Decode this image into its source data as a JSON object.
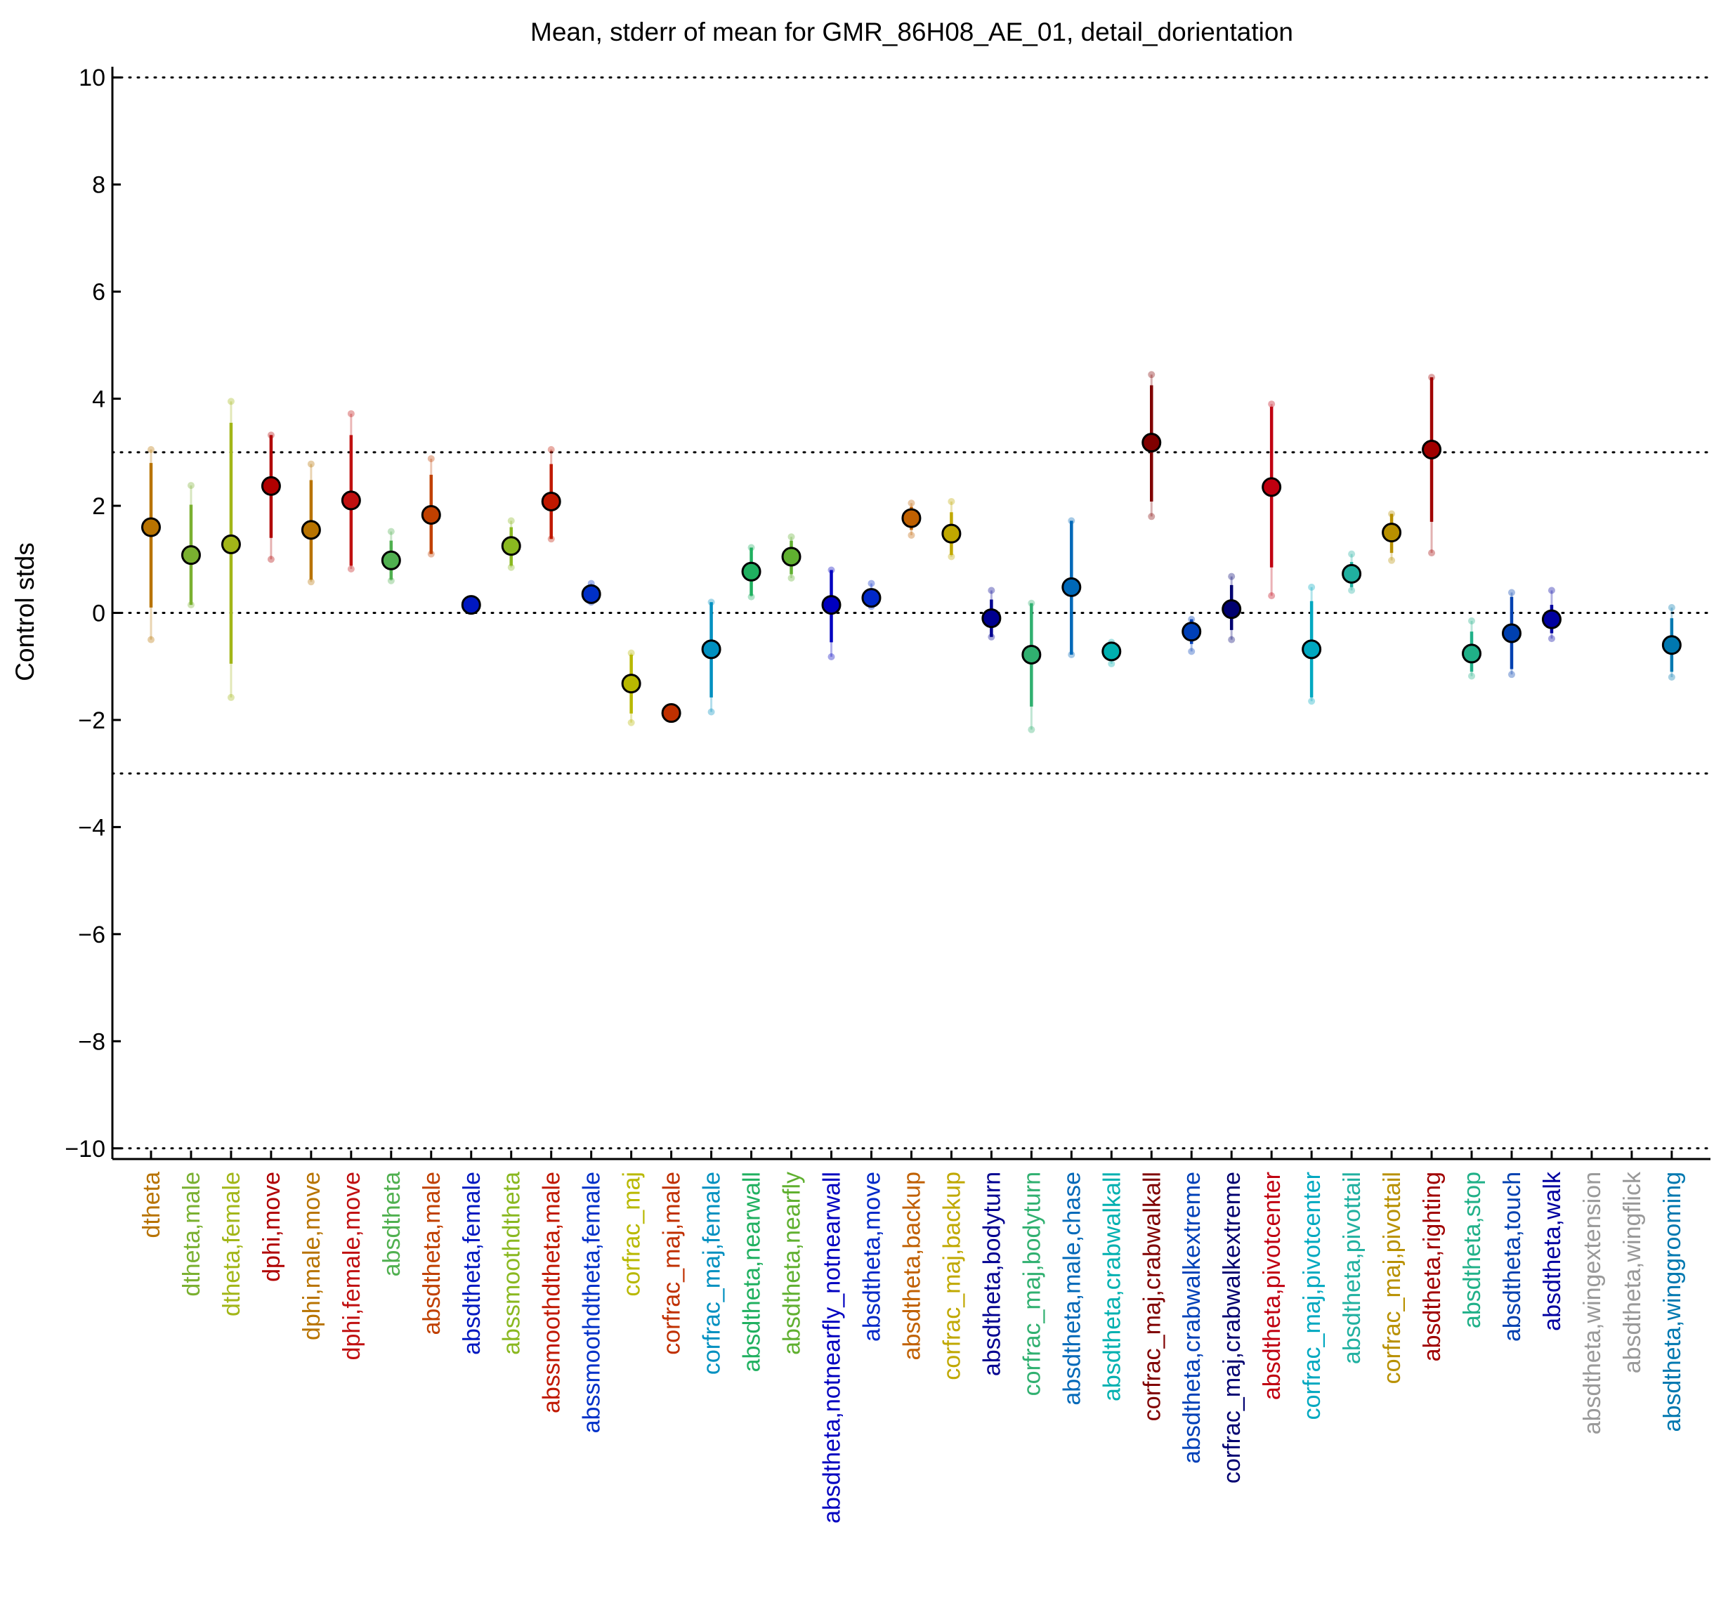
{
  "chart_data": {
    "type": "scatter",
    "title": "Mean, stderr of mean for GMR_86H08_AE_01, detail_dorientation",
    "ylabel": "Control stds",
    "xlabel": "",
    "ylim": [
      -10.2,
      10.2
    ],
    "yticks": [
      10,
      8,
      6,
      4,
      2,
      0,
      -2,
      -4,
      -6,
      -8,
      -10
    ],
    "ytick_labels": [
      "10",
      "8",
      "6",
      "4",
      "2",
      "0",
      "−2",
      "−4",
      "−6",
      "−8",
      "−10"
    ],
    "reference_lines": [
      10,
      3,
      0,
      -3,
      -10
    ],
    "grid": false,
    "legend": "none",
    "categories": [
      {
        "label": "dtheta",
        "color": "#b87300",
        "mean": 1.6,
        "se_low": 0.1,
        "se_high": 2.8,
        "pt_low": -0.5,
        "pt_high": 3.05
      },
      {
        "label": "dtheta,male",
        "color": "#7ab030",
        "mean": 1.08,
        "se_low": 0.15,
        "se_high": 2.02,
        "pt_low": 0.15,
        "pt_high": 2.38
      },
      {
        "label": "dtheta,female",
        "color": "#a2b618",
        "mean": 1.28,
        "se_low": -0.95,
        "se_high": 3.55,
        "pt_low": -1.58,
        "pt_high": 3.95
      },
      {
        "label": "dphi,move",
        "color": "#b00000",
        "mean": 2.37,
        "se_low": 1.4,
        "se_high": 3.32,
        "pt_low": 1.0,
        "pt_high": 3.32
      },
      {
        "label": "dphi,male,move",
        "color": "#b87300",
        "mean": 1.55,
        "se_low": 0.62,
        "se_high": 2.48,
        "pt_low": 0.58,
        "pt_high": 2.78
      },
      {
        "label": "dphi,female,move",
        "color": "#c01010",
        "mean": 2.1,
        "se_low": 0.88,
        "se_high": 3.32,
        "pt_low": 0.82,
        "pt_high": 3.72
      },
      {
        "label": "absdtheta",
        "color": "#50b050",
        "mean": 0.98,
        "se_low": 0.62,
        "se_high": 1.35,
        "pt_low": 0.6,
        "pt_high": 1.52
      },
      {
        "label": "absdtheta,male",
        "color": "#c04000",
        "mean": 1.83,
        "se_low": 1.1,
        "se_high": 2.58,
        "pt_low": 1.1,
        "pt_high": 2.88
      },
      {
        "label": "absdtheta,female",
        "color": "#0018c0",
        "mean": 0.15,
        "se_low": 0.15,
        "se_high": 0.15,
        "pt_low": 0.15,
        "pt_high": 0.15
      },
      {
        "label": "abssmoothdtheta",
        "color": "#8ab820",
        "mean": 1.25,
        "se_low": 0.88,
        "se_high": 1.6,
        "pt_low": 0.85,
        "pt_high": 1.72
      },
      {
        "label": "abssmoothdtheta,male",
        "color": "#c01800",
        "mean": 2.08,
        "se_low": 1.38,
        "se_high": 2.78,
        "pt_low": 1.38,
        "pt_high": 3.05
      },
      {
        "label": "abssmoothdtheta,female",
        "color": "#0030c8",
        "mean": 0.35,
        "se_low": 0.22,
        "se_high": 0.5,
        "pt_low": 0.2,
        "pt_high": 0.55
      },
      {
        "label": "corfrac_maj",
        "color": "#b8b800",
        "mean": -1.32,
        "se_low": -1.88,
        "se_high": -0.78,
        "pt_low": -2.05,
        "pt_high": -0.75
      },
      {
        "label": "corfrac_maj,male",
        "color": "#c03000",
        "mean": -1.87,
        "se_low": -1.87,
        "se_high": -1.87,
        "pt_low": -1.87,
        "pt_high": -1.87
      },
      {
        "label": "corfrac_maj,female",
        "color": "#0090c0",
        "mean": -0.68,
        "se_low": -1.58,
        "se_high": 0.2,
        "pt_low": -1.85,
        "pt_high": 0.2
      },
      {
        "label": "absdtheta,nearwall",
        "color": "#20b060",
        "mean": 0.77,
        "se_low": 0.32,
        "se_high": 1.22,
        "pt_low": 0.3,
        "pt_high": 1.22
      },
      {
        "label": "absdtheta,nearfly",
        "color": "#60b030",
        "mean": 1.05,
        "se_low": 0.72,
        "se_high": 1.35,
        "pt_low": 0.65,
        "pt_high": 1.42
      },
      {
        "label": "absdtheta,notnearfly_notnearwall",
        "color": "#0000c0",
        "mean": 0.15,
        "se_low": -0.55,
        "se_high": 0.8,
        "pt_low": -0.82,
        "pt_high": 0.8
      },
      {
        "label": "absdtheta,move",
        "color": "#0028c8",
        "mean": 0.28,
        "se_low": 0.15,
        "se_high": 0.42,
        "pt_low": 0.12,
        "pt_high": 0.55
      },
      {
        "label": "absdtheta,backup",
        "color": "#c06000",
        "mean": 1.77,
        "se_low": 1.55,
        "se_high": 1.98,
        "pt_low": 1.45,
        "pt_high": 2.05
      },
      {
        "label": "corfrac_maj,backup",
        "color": "#c0a800",
        "mean": 1.48,
        "se_low": 1.08,
        "se_high": 1.88,
        "pt_low": 1.05,
        "pt_high": 2.08
      },
      {
        "label": "absdtheta,bodyturn",
        "color": "#000090",
        "mean": -0.1,
        "se_low": -0.45,
        "se_high": 0.25,
        "pt_low": -0.45,
        "pt_high": 0.42
      },
      {
        "label": "corfrac_maj,bodyturn",
        "color": "#30b070",
        "mean": -0.78,
        "se_low": -1.75,
        "se_high": 0.18,
        "pt_low": -2.18,
        "pt_high": 0.18
      },
      {
        "label": "absdtheta,male,chase",
        "color": "#0068b8",
        "mean": 0.48,
        "se_low": -0.78,
        "se_high": 1.72,
        "pt_low": -0.78,
        "pt_high": 1.72
      },
      {
        "label": "absdtheta,crabwalkall",
        "color": "#00b0b0",
        "mean": -0.72,
        "se_low": -0.88,
        "se_high": -0.55,
        "pt_low": -0.95,
        "pt_high": -0.55
      },
      {
        "label": "corfrac_maj,crabwalkall",
        "color": "#800000",
        "mean": 3.18,
        "se_low": 2.08,
        "se_high": 4.25,
        "pt_low": 1.8,
        "pt_high": 4.45
      },
      {
        "label": "absdtheta,crabwalkextreme",
        "color": "#0040b8",
        "mean": -0.35,
        "se_low": -0.58,
        "se_high": -0.12,
        "pt_low": -0.72,
        "pt_high": -0.12
      },
      {
        "label": "corfrac_maj,crabwalkextreme",
        "color": "#000070",
        "mean": 0.07,
        "se_low": -0.32,
        "se_high": 0.52,
        "pt_low": -0.5,
        "pt_high": 0.68
      },
      {
        "label": "absdtheta,pivotcenter",
        "color": "#c00010",
        "mean": 2.35,
        "se_low": 0.85,
        "se_high": 3.85,
        "pt_low": 0.32,
        "pt_high": 3.9
      },
      {
        "label": "corfrac_maj,pivotcenter",
        "color": "#00a8c0",
        "mean": -0.68,
        "se_low": -1.58,
        "se_high": 0.22,
        "pt_low": -1.65,
        "pt_high": 0.48
      },
      {
        "label": "absdtheta,pivottail",
        "color": "#20b0a0",
        "mean": 0.73,
        "se_low": 0.48,
        "se_high": 0.95,
        "pt_low": 0.42,
        "pt_high": 1.1
      },
      {
        "label": "corfrac_maj,pivottail",
        "color": "#b89000",
        "mean": 1.5,
        "se_low": 1.12,
        "se_high": 1.85,
        "pt_low": 0.98,
        "pt_high": 1.85
      },
      {
        "label": "absdtheta,righting",
        "color": "#a00000",
        "mean": 3.05,
        "se_low": 1.7,
        "se_high": 4.4,
        "pt_low": 1.12,
        "pt_high": 4.4
      },
      {
        "label": "absdtheta,stop",
        "color": "#20b088",
        "mean": -0.76,
        "se_low": -1.1,
        "se_high": -0.35,
        "pt_low": -1.18,
        "pt_high": -0.15
      },
      {
        "label": "absdtheta,touch",
        "color": "#0040b0",
        "mean": -0.38,
        "se_low": -1.05,
        "se_high": 0.3,
        "pt_low": -1.15,
        "pt_high": 0.38
      },
      {
        "label": "absdtheta,walk",
        "color": "#0000a0",
        "mean": -0.12,
        "se_low": -0.38,
        "se_high": 0.15,
        "pt_low": -0.48,
        "pt_high": 0.42
      },
      {
        "label": "absdtheta,wingextension",
        "color": "#999999",
        "mean": null,
        "se_low": null,
        "se_high": null,
        "pt_low": null,
        "pt_high": null
      },
      {
        "label": "absdtheta,wingflick",
        "color": "#999999",
        "mean": null,
        "se_low": null,
        "se_high": null,
        "pt_low": null,
        "pt_high": null
      },
      {
        "label": "absdtheta,winggrooming",
        "color": "#0078b0",
        "mean": -0.6,
        "se_low": -1.1,
        "se_high": -0.1,
        "pt_low": -1.2,
        "pt_high": 0.1
      }
    ]
  }
}
